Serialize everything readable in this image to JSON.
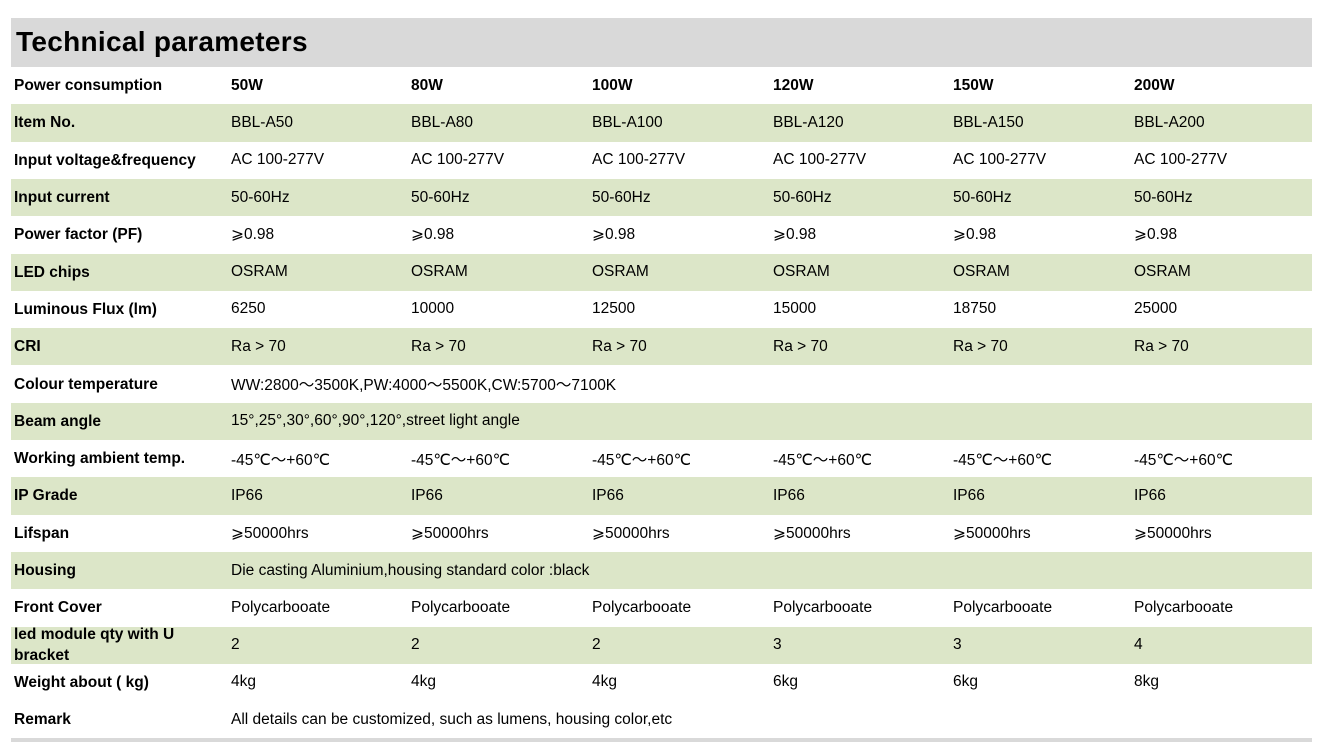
{
  "title": "Technical parameters",
  "table": {
    "rows": [
      [
        "Power consumption",
        "50W",
        "80W",
        "100W",
        "120W",
        "150W",
        "200W"
      ],
      [
        "Item No.",
        "BBL-A50",
        "BBL-A80",
        "BBL-A100",
        "BBL-A120",
        "BBL-A150",
        "BBL-A200"
      ],
      [
        "Input voltage&frequency",
        "AC 100-277V",
        "AC 100-277V",
        "AC 100-277V",
        "AC 100-277V",
        "AC 100-277V",
        "AC 100-277V"
      ],
      [
        "Input current",
        "50-60Hz",
        "50-60Hz",
        "50-60Hz",
        "50-60Hz",
        "50-60Hz",
        "50-60Hz"
      ],
      [
        "Power factor (PF)",
        "⩾0.98",
        "⩾0.98",
        "⩾0.98",
        "⩾0.98",
        "⩾0.98",
        "⩾0.98"
      ],
      [
        "LED chips",
        "OSRAM",
        "OSRAM",
        "OSRAM",
        "OSRAM",
        "OSRAM",
        "OSRAM"
      ],
      [
        "Luminous Flux (lm)",
        "6250",
        "10000",
        "12500",
        "15000",
        "18750",
        "25000"
      ],
      [
        "CRI",
        "Ra > 70",
        "Ra > 70",
        "Ra > 70",
        "Ra > 70",
        "Ra > 70",
        "Ra > 70"
      ],
      [
        "Colour temperature",
        "WW:2800～3500K,PW:4000～5500K,CW:5700～7100K"
      ],
      [
        "Beam angle",
        "15°,25°,30°,60°,90°,120°,street light angle"
      ],
      [
        "Working ambient temp.",
        "-45℃～+60℃",
        "-45℃～+60℃",
        "-45℃～+60℃",
        "-45℃～+60℃",
        "-45℃～+60℃",
        "-45℃～+60℃"
      ],
      [
        "IP Grade",
        "IP66",
        "IP66",
        "IP66",
        "IP66",
        "IP66",
        "IP66"
      ],
      [
        "Lifspan",
        "⩾50000hrs",
        "⩾50000hrs",
        "⩾50000hrs",
        "⩾50000hrs",
        "⩾50000hrs",
        "⩾50000hrs"
      ],
      [
        "Housing",
        "Die casting Aluminium,housing standard color :black"
      ],
      [
        "Front Cover",
        "Polycarbooate",
        "Polycarbooate",
        "Polycarbooate",
        "Polycarbooate",
        "Polycarbooate",
        "Polycarbooate"
      ],
      [
        "led module qty with U bracket",
        "2",
        "2",
        "2",
        "3",
        "3",
        "4"
      ],
      [
        "Weight about ( kg)",
        "4kg",
        "4kg",
        "4kg",
        "6kg",
        "6kg",
        "8kg"
      ],
      [
        "Remark",
        "All details can be customized, such as lumens, housing color,etc"
      ]
    ]
  }
}
